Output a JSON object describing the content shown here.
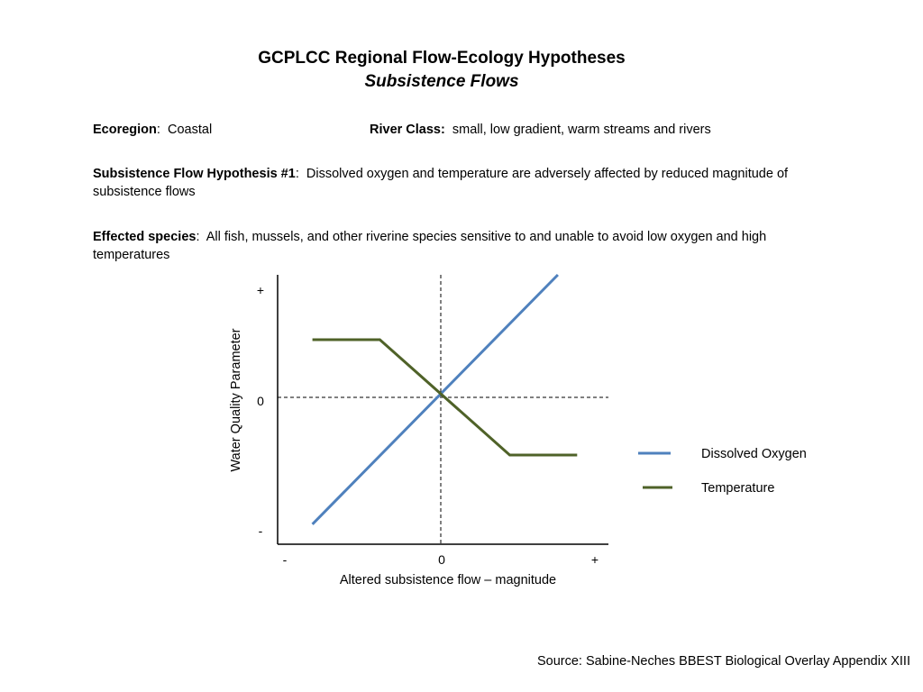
{
  "header": {
    "title": "GCPLCC Regional Flow-Ecology Hypotheses",
    "subtitle": "Subsistence Flows"
  },
  "info": {
    "ecoregion_label": "Ecoregion",
    "ecoregion_value": "Coastal",
    "river_class_label": "River Class:",
    "river_class_value": "small, low gradient, warm streams and rivers",
    "hypothesis_label": "Subsistence Flow Hypothesis #1",
    "hypothesis_value": "Dissolved oxygen and temperature are adversely affected by reduced magnitude of subsistence flows",
    "species_label": "Effected species",
    "species_value": "All fish, mussels, and other riverine species sensitive to and unable to avoid low oxygen and high temperatures"
  },
  "source": "Source:  Sabine-Neches BBEST Biological Overlay Appendix XIII",
  "chart_data": {
    "type": "line",
    "xlabel": "Altered subsistence flow – magnitude",
    "ylabel": "Water Quality Parameter",
    "x_ticks": [
      {
        "value": -1,
        "label": "-"
      },
      {
        "value": 0,
        "label": "0"
      },
      {
        "value": 1,
        "label": "+"
      }
    ],
    "y_ticks": [
      {
        "value": -1,
        "label": "-"
      },
      {
        "value": 0,
        "label": "0"
      },
      {
        "value": 1,
        "label": "+"
      }
    ],
    "xlim": [
      -1.0,
      1.0
    ],
    "ylim": [
      -1.0,
      1.0
    ],
    "reference_lines": {
      "x": 0,
      "y": 0,
      "style": "dashed"
    },
    "legend_position": "right",
    "series": [
      {
        "name": "Dissolved Oxygen",
        "color": "#4f81bd",
        "points": [
          [
            -0.8,
            -0.88
          ],
          [
            0.73,
            0.85
          ]
        ]
      },
      {
        "name": "Temperature",
        "color": "#4f6228",
        "points": [
          [
            -0.8,
            0.4
          ],
          [
            -0.38,
            0.4
          ],
          [
            0.43,
            -0.4
          ],
          [
            0.85,
            -0.4
          ]
        ]
      }
    ]
  }
}
